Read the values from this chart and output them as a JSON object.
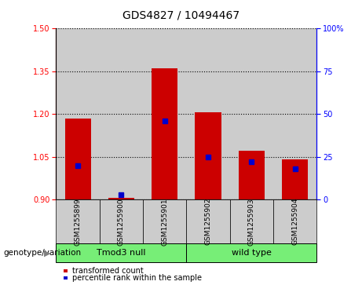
{
  "title": "GDS4827 / 10494467",
  "samples": [
    "GSM1255899",
    "GSM1255900",
    "GSM1255901",
    "GSM1255902",
    "GSM1255903",
    "GSM1255904"
  ],
  "transformed_counts": [
    1.185,
    0.905,
    1.36,
    1.205,
    1.07,
    1.04
  ],
  "percentile_ranks": [
    20,
    3,
    46,
    25,
    22,
    18
  ],
  "baseline": 0.9,
  "ylim_left": [
    0.9,
    1.5
  ],
  "ylim_right": [
    0,
    100
  ],
  "yticks_left": [
    0.9,
    1.05,
    1.2,
    1.35,
    1.5
  ],
  "yticks_right": [
    0,
    25,
    50,
    75,
    100
  ],
  "bar_width": 0.6,
  "bar_color": "#cc0000",
  "percentile_color": "#0000cc",
  "col_bg_color": "#cccccc",
  "group1_label": "Tmod3 null",
  "group2_label": "wild type",
  "group_label_prefix": "genotype/variation",
  "group1_indices": [
    0,
    1,
    2
  ],
  "group2_indices": [
    3,
    4,
    5
  ],
  "group_bg_color": "#77ee77",
  "legend_red_label": "transformed count",
  "legend_blue_label": "percentile rank within the sample",
  "grid_color": "#000000",
  "title_fontsize": 10,
  "tick_fontsize": 7,
  "sample_fontsize": 6.5,
  "group_fontsize": 8,
  "legend_fontsize": 7
}
